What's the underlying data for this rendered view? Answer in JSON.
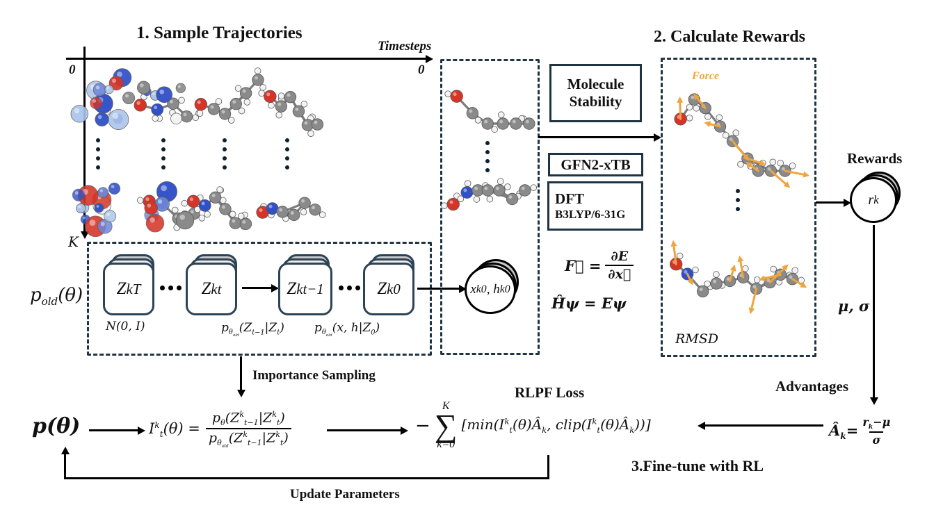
{
  "colors": {
    "dash_border": "#1e3343",
    "orange": "#f0a43c",
    "black": "#000000"
  },
  "sample_section": {
    "title": "1. Sample Trajectories",
    "axis_x_label": "Timesteps",
    "axis_x_start": "0",
    "axis_x_end": "0",
    "axis_y_end": "K"
  },
  "latent_box": {
    "p_old": "p_{old}(θ)",
    "cards": [
      "Z^{k}_{T}",
      "Z^{k}_{t}",
      "Z^{k}_{t−1}",
      "Z^{k}_{0}"
    ],
    "prior_label": "N(0, I)",
    "transition_label": "p_{θ_{old}}(Z_{t−1}|Z_{t})",
    "decode_label": "p_{θ_{old}}(x, h|Z_{0})",
    "output": "x^{k}_{0}, h^{k}_{0}"
  },
  "tools": {
    "stability_line1": "Molecule",
    "stability_line2": "Stability",
    "gfn": "GFN2-xTB",
    "dft_line1": "DFT",
    "dft_line2": "B3LYP/6-31G",
    "force_lhs": "F⃗ =",
    "force_num": "∂E",
    "force_den": "∂x⃗",
    "schrodinger": "Ĥψ = Eψ"
  },
  "rewards_section": {
    "title": "2. Calculate  Rewards",
    "force_label": "Force",
    "rmsd_label": "RMSD",
    "rewards_label": "Rewards",
    "reward_symbol": "r_{k}",
    "mu_sigma": "μ, σ",
    "advantages_label": "Advantages",
    "advantage_lhs": "Â_{k}=",
    "advantage_num": "r_{k}−μ",
    "advantage_den": "σ"
  },
  "finetune_section": {
    "importance_label": "Importance Sampling",
    "p_theta": "p(θ)",
    "ratio_lhs": "I^{k}_{t}(θ) =",
    "ratio_num": "p_{θ}(Z^{k}_{t−1}|Z^{k}_{t})",
    "ratio_den": "p_{θ_{old}}(Z^{k}_{t−1}|Z^{k}_{t})",
    "loss_title": "RLPF  Loss",
    "sum_minus": "−",
    "sum_top": "K",
    "sum_symbol": "∑",
    "sum_bottom": "k=0",
    "loss_body": "[min(I^{k}_{t}(θ)Â_{k}, clip(I^{k}_{t}(θ)Â_{k}))]",
    "finetune_label": "3.Fine-tune with RL",
    "update_label": "Update Parameters"
  }
}
